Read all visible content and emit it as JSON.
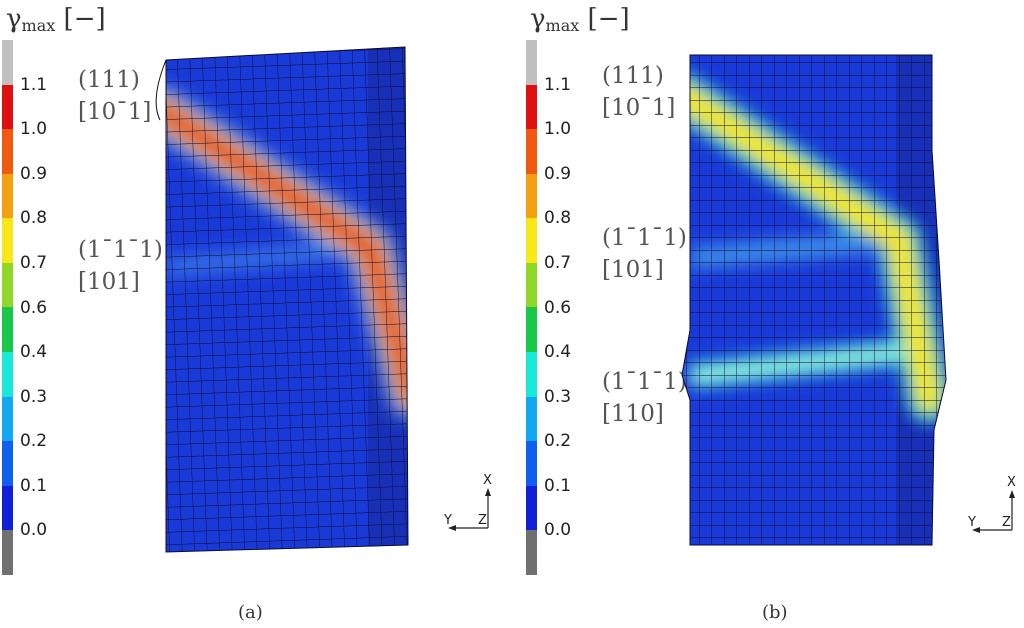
{
  "colorbar": {
    "title_symbol": "γ",
    "title_sub": "max",
    "title_unit": "[−]",
    "ticks": [
      "1.1",
      "1.0",
      "0.9",
      "0.8",
      "0.7",
      "0.6",
      "0.4",
      "0.3",
      "0.2",
      "0.1",
      "0.0"
    ],
    "colors": [
      "#c0c0c0",
      "#e01010",
      "#f05a10",
      "#f5a010",
      "#f8e81a",
      "#8fd828",
      "#18c848",
      "#18e8d8",
      "#10a8f0",
      "#1060f0",
      "#1020d8",
      "#707070"
    ]
  },
  "panel_a": {
    "label": "(a)",
    "planes": [
      {
        "plane": "(111)",
        "direction": "[10¯1]"
      },
      {
        "plane": "(1¯1¯1)",
        "direction": "[101]"
      }
    ]
  },
  "panel_b": {
    "label": "(b)",
    "planes": [
      {
        "plane": "(111)",
        "direction": "[10¯1]"
      },
      {
        "plane": "(1¯1¯1)",
        "direction": "[101]"
      },
      {
        "plane": "(1¯1¯1)",
        "direction": "[110]"
      }
    ]
  },
  "triad": {
    "x": "X",
    "y": "Y",
    "z": "Z"
  },
  "colors": {
    "mesh_base": "#1a3ad8",
    "mesh_line": "#0a0a30",
    "background": "#ffffff"
  }
}
